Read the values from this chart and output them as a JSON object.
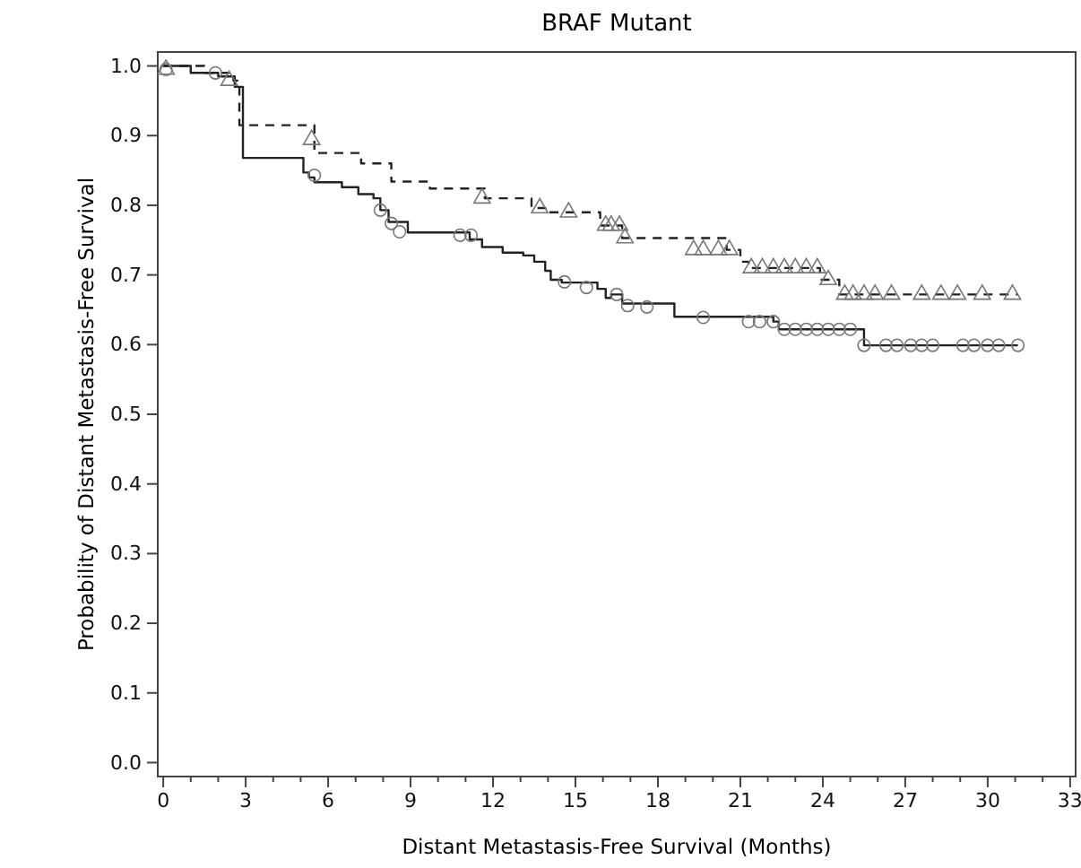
{
  "chart_data": {
    "type": "step",
    "title": "BRAF Mutant",
    "xlabel": "Distant Metastasis-Free Survival (Months)",
    "ylabel": "Probability of Distant Metastasis-Free Survival",
    "xlim": [
      -0.2,
      33.2
    ],
    "ylim": [
      -0.02,
      1.02
    ],
    "xticks": [
      0,
      {
        "value": 1,
        "label": null
      },
      {
        "value": 2,
        "label": null
      },
      3,
      {
        "value": 4,
        "label": null
      },
      {
        "value": 5,
        "label": null
      },
      6,
      {
        "value": 7,
        "label": null
      },
      {
        "value": 8,
        "label": null
      },
      9,
      {
        "value": 10,
        "label": null
      },
      {
        "value": 11,
        "label": null
      },
      12,
      {
        "value": 13,
        "label": null
      },
      {
        "value": 14,
        "label": null
      },
      15,
      {
        "value": 16,
        "label": null
      },
      {
        "value": 17,
        "label": null
      },
      18,
      {
        "value": 19,
        "label": null
      },
      {
        "value": 20,
        "label": null
      },
      21,
      {
        "value": 22,
        "label": null
      },
      {
        "value": 23,
        "label": null
      },
      24,
      {
        "value": 25,
        "label": null
      },
      {
        "value": 26,
        "label": null
      },
      27,
      {
        "value": 28,
        "label": null
      },
      {
        "value": 29,
        "label": null
      },
      30,
      {
        "value": 31,
        "label": null
      },
      {
        "value": 32,
        "label": null
      },
      33
    ],
    "yticks": [
      {
        "value": 0,
        "label": "0.0"
      },
      0.1,
      0.2,
      0.3,
      0.4,
      0.5,
      0.6,
      0.7,
      0.8,
      0.9,
      {
        "value": 1,
        "label": "1.0"
      }
    ],
    "grid": false,
    "series": [
      {
        "type": "step",
        "color": "#222222",
        "line_style": "solid",
        "x": [
          0,
          1,
          2,
          2.6,
          2.9,
          5.1,
          5.3,
          5.5,
          6.5,
          7.1,
          7.65,
          7.9,
          8.2,
          8.9,
          11.15,
          11.6,
          12.35,
          13.1,
          13.5,
          13.9,
          14.1,
          14.5,
          15.8,
          16.1,
          16.3,
          16.7,
          18.6,
          22.2,
          22.4,
          25.4,
          25.5,
          31.1
        ],
        "values": [
          1,
          0.99,
          0.985,
          0.97,
          0.868,
          0.847,
          0.84,
          0.833,
          0.826,
          0.816,
          0.81,
          0.793,
          0.776,
          0.761,
          0.751,
          0.74,
          0.732,
          0.728,
          0.719,
          0.706,
          0.693,
          0.689,
          0.68,
          0.667,
          0.672,
          0.659,
          0.64,
          0.633,
          0.622,
          0.622,
          0.599,
          0.599
        ]
      },
      {
        "type": "step",
        "color": "#222222",
        "line_style": "dashed",
        "x": [
          0,
          1.5,
          2.55,
          2.77,
          5.5,
          7.2,
          8.3,
          9.7,
          11.7,
          13.4,
          13.9,
          15.9,
          16.7,
          20.5,
          21,
          21.3,
          23.9,
          24.6,
          31.1
        ],
        "values": [
          1,
          0.99,
          0.979,
          0.915,
          0.875,
          0.86,
          0.834,
          0.824,
          0.81,
          0.796,
          0.79,
          0.771,
          0.753,
          0.736,
          0.719,
          0.71,
          0.693,
          0.672,
          0.672
        ]
      },
      {
        "type": "scatter",
        "marker": "circle",
        "color": "#777777",
        "x": [
          0.1,
          1.9,
          5.5,
          7.9,
          8.3,
          8.6,
          10.8,
          11.2,
          14.6,
          15.4,
          16.5,
          16.9,
          17.6,
          19.65,
          21.3,
          21.7,
          22.2,
          22.6,
          23,
          23.4,
          23.8,
          24.2,
          24.6,
          25,
          25.5,
          26.3,
          26.7,
          27.2,
          27.6,
          28,
          29.1,
          29.5,
          30,
          30.4,
          31.1
        ],
        "values": [
          0.995,
          0.99,
          0.843,
          0.793,
          0.774,
          0.762,
          0.757,
          0.757,
          0.69,
          0.682,
          0.672,
          0.656,
          0.654,
          0.639,
          0.633,
          0.633,
          0.633,
          0.622,
          0.622,
          0.622,
          0.622,
          0.622,
          0.622,
          0.622,
          0.599,
          0.599,
          0.599,
          0.599,
          0.599,
          0.599,
          0.599,
          0.599,
          0.599,
          0.599,
          0.599
        ]
      },
      {
        "type": "scatter",
        "marker": "triangle",
        "color": "#777777",
        "x": [
          0.1,
          2.4,
          5.4,
          11.6,
          13.7,
          14.75,
          16.1,
          16.3,
          16.6,
          16.8,
          19.3,
          19.65,
          20.2,
          20.6,
          21.4,
          21.8,
          22.2,
          22.6,
          23,
          23.4,
          23.8,
          24.2,
          24.8,
          25.1,
          25.5,
          25.9,
          26.5,
          27.6,
          28.3,
          28.9,
          29.8,
          30.9
        ],
        "values": [
          0.995,
          0.979,
          0.894,
          0.81,
          0.796,
          0.79,
          0.771,
          0.771,
          0.771,
          0.753,
          0.736,
          0.736,
          0.736,
          0.736,
          0.71,
          0.71,
          0.71,
          0.71,
          0.71,
          0.71,
          0.71,
          0.693,
          0.672,
          0.672,
          0.672,
          0.672,
          0.672,
          0.672,
          0.672,
          0.672,
          0.672,
          0.672
        ]
      }
    ]
  }
}
